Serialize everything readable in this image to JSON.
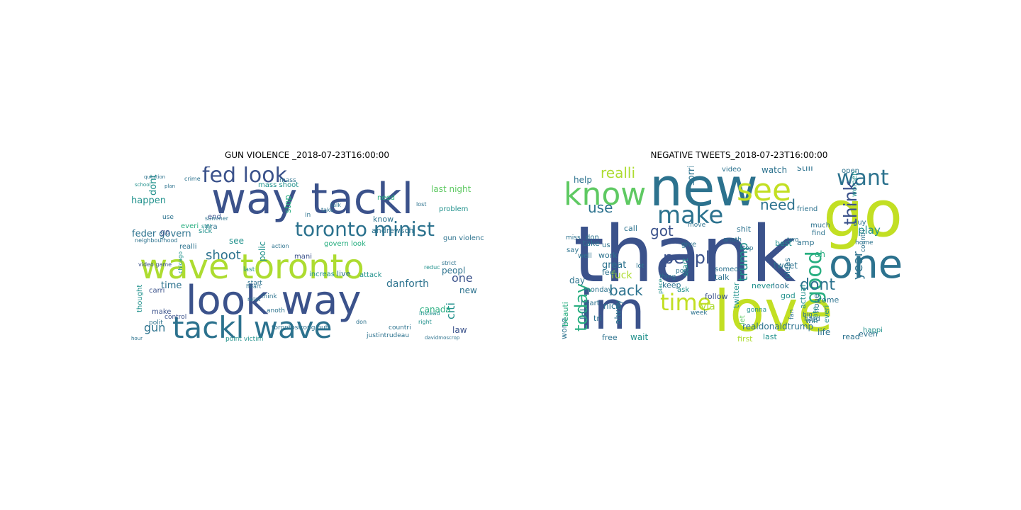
{
  "palette": [
    "#440154",
    "#472d7b",
    "#3b528b",
    "#2c728e",
    "#21918c",
    "#28ae80",
    "#5ec962",
    "#addc30",
    "#c2df23",
    "#fde725"
  ],
  "panels": [
    {
      "title": "GUN VIOLENCE _2018-07-23T16:00:00",
      "words": [
        [
          "wave toronto",
          7
        ],
        [
          "way tackl",
          2
        ],
        [
          "look way",
          2
        ],
        [
          "tackl wave",
          3
        ],
        [
          "toronto minist",
          3
        ],
        [
          "fed look",
          2
        ],
        [
          "shoot",
          3
        ],
        [
          "mass shoot",
          4
        ],
        [
          "last night",
          6
        ],
        [
          "dont",
          4
        ],
        [
          "happen",
          4
        ],
        [
          "feder govern",
          3
        ],
        [
          "everi",
          5
        ],
        [
          "end",
          2
        ],
        [
          "see",
          4
        ],
        [
          "polic",
          4
        ],
        [
          "stop",
          5
        ],
        [
          "time",
          3
        ],
        [
          "gun",
          3
        ],
        [
          "thought",
          4
        ],
        [
          "go",
          2
        ],
        [
          "realli",
          3
        ],
        [
          "make",
          2
        ],
        [
          "polit",
          3
        ],
        [
          "know",
          3
        ],
        [
          "need",
          5
        ],
        [
          "problem",
          4
        ],
        [
          "peopl",
          3
        ],
        [
          "one",
          2
        ],
        [
          "citi",
          4
        ],
        [
          "canada",
          5
        ],
        [
          "danforth",
          3
        ],
        [
          "law",
          2
        ],
        [
          "new",
          3
        ],
        [
          "andrewsch",
          3
        ],
        [
          "govern look",
          5
        ],
        [
          "live",
          3
        ],
        [
          "attack",
          4
        ],
        [
          "increas",
          4
        ],
        [
          "mani",
          2
        ],
        [
          "justintrudeau",
          3
        ],
        [
          "gun violenc",
          3
        ],
        [
          "think",
          3
        ],
        [
          "carri",
          2
        ],
        [
          "anoth",
          3
        ],
        [
          "point victim",
          4
        ],
        [
          "torontostrong put",
          3
        ],
        [
          "countri",
          3
        ],
        [
          "nra",
          3
        ],
        [
          "video game",
          2
        ],
        [
          "sick",
          4
        ],
        [
          "crime",
          3
        ],
        [
          "lost",
          3
        ],
        [
          "talk",
          3
        ],
        [
          "take",
          3
        ],
        [
          "use",
          3
        ],
        [
          "start",
          3
        ],
        [
          "right",
          4
        ],
        [
          "hour",
          3
        ],
        [
          "summer",
          3
        ],
        [
          "in",
          3
        ],
        [
          "last",
          4
        ],
        [
          "mass",
          3
        ],
        [
          "action",
          3
        ],
        [
          "neighbourhood",
          3
        ],
        [
          "control",
          2
        ],
        [
          "strict",
          3
        ],
        [
          "reduc",
          4
        ],
        [
          "instead",
          4
        ],
        [
          "don",
          3
        ],
        [
          "heart",
          3
        ],
        [
          "relat",
          3
        ],
        [
          "chicago",
          4
        ],
        [
          "davidmoscrop",
          3
        ],
        [
          "still",
          4
        ],
        [
          "plan",
          3
        ],
        [
          "question",
          3
        ],
        [
          "school",
          4
        ]
      ]
    },
    {
      "title": "NEGATIVE TWEETS_2018-07-23T16:00:00",
      "words": [
        [
          "thank",
          2
        ],
        [
          "new",
          3
        ],
        [
          "go",
          8
        ],
        [
          "love",
          8
        ],
        [
          "im",
          2
        ],
        [
          "one",
          3
        ],
        [
          "see",
          8
        ],
        [
          "know",
          6
        ],
        [
          "want",
          3
        ],
        [
          "make",
          3
        ],
        [
          "time",
          8
        ],
        [
          "good",
          5
        ],
        [
          "need",
          3
        ],
        [
          "think",
          2
        ],
        [
          "peopl",
          2
        ],
        [
          "dont",
          3
        ],
        [
          "year",
          3
        ],
        [
          "realli",
          7
        ],
        [
          "use",
          3
        ],
        [
          "got",
          2
        ],
        [
          "back",
          3
        ],
        [
          "trump",
          4
        ],
        [
          "today",
          5
        ],
        [
          "play",
          4
        ],
        [
          "day",
          3
        ],
        [
          "realdonaldtrump",
          3
        ],
        [
          "great",
          3
        ],
        [
          "life",
          3
        ],
        [
          "watch",
          3
        ],
        [
          "still",
          3
        ],
        [
          "sorri",
          3
        ],
        [
          "fuck",
          7
        ],
        [
          "keep",
          3
        ],
        [
          "lol",
          3
        ],
        [
          "follow",
          2
        ],
        [
          "free",
          3
        ],
        [
          "wait",
          4
        ],
        [
          "work",
          3
        ],
        [
          "first",
          7
        ],
        [
          "last",
          4
        ],
        [
          "tweet",
          3
        ],
        [
          "look",
          3
        ],
        [
          "let",
          6
        ],
        [
          "pleas",
          3
        ],
        [
          "via",
          7
        ],
        [
          "nice",
          3
        ],
        [
          "alway",
          3
        ],
        [
          "shit",
          3
        ],
        [
          "amp",
          3
        ],
        [
          "actual",
          4
        ],
        [
          "come",
          3
        ],
        [
          "god",
          4
        ],
        [
          "hope",
          3
        ],
        [
          "read",
          3
        ],
        [
          "even",
          3
        ],
        [
          "happi",
          4
        ],
        [
          "guy",
          3
        ],
        [
          "world",
          3
        ],
        [
          "beauti",
          5
        ],
        [
          "help",
          3
        ],
        [
          "call",
          3
        ],
        [
          "feel",
          3
        ],
        [
          "take",
          3
        ],
        [
          "well",
          3
        ],
        [
          "say",
          3
        ],
        [
          "tri",
          3
        ],
        [
          "us",
          3
        ],
        [
          "heart",
          3
        ],
        [
          "twitter",
          4
        ],
        [
          "give",
          3
        ],
        [
          "talk",
          3
        ],
        [
          "start",
          4
        ],
        [
          "best",
          4
        ],
        [
          "open",
          3
        ],
        [
          "video",
          3
        ],
        [
          "women",
          4
        ],
        [
          "friend",
          3
        ],
        [
          "never",
          4
        ],
        [
          "oh",
          5
        ],
        [
          "hate",
          4
        ],
        [
          "win",
          3
        ],
        [
          "everi",
          4
        ],
        [
          "hard",
          3
        ],
        [
          "don",
          3
        ],
        [
          "miss",
          3
        ],
        [
          "monday",
          3
        ],
        [
          "move",
          3
        ],
        [
          "two",
          3
        ],
        [
          "find",
          3
        ],
        [
          "much",
          3
        ],
        [
          "someon",
          3
        ],
        [
          "anoth",
          3
        ],
        [
          "stop",
          3
        ],
        [
          "home",
          3
        ],
        [
          "countri",
          3
        ],
        [
          "gonna",
          4
        ],
        [
          "post",
          3
        ],
        [
          "thing",
          3
        ],
        [
          "lot",
          3
        ],
        [
          "place",
          4
        ],
        [
          "ask",
          4
        ],
        [
          "week",
          3
        ],
        [
          "big",
          3
        ],
        [
          "fan",
          3
        ]
      ]
    }
  ]
}
